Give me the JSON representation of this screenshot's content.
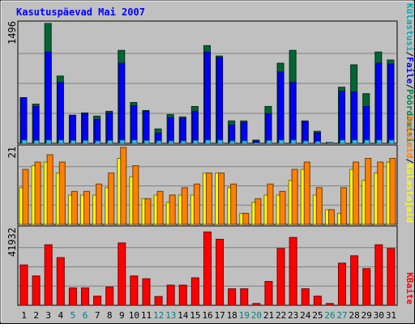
{
  "chart_data": [
    {
      "type": "bar",
      "title": "Kasutuspäevad Mai 2007",
      "categories": [
        "1",
        "2",
        "3",
        "4",
        "5",
        "6",
        "7",
        "8",
        "9",
        "10",
        "11",
        "12",
        "13",
        "14",
        "15",
        "16",
        "17",
        "18",
        "19",
        "20",
        "21",
        "22",
        "23",
        "24",
        "25",
        "26",
        "27",
        "28",
        "29",
        "30",
        "31"
      ],
      "weekend_days": [
        "5",
        "6",
        "12",
        "13",
        "19",
        "20",
        "26",
        "27"
      ],
      "ylabel_max": "1496",
      "ylim": [
        0,
        1496
      ],
      "grid": true,
      "series": [
        {
          "name": "Pöördumisi",
          "color": "#006633",
          "values": [
            570,
            490,
            1496,
            840,
            350,
            380,
            340,
            400,
            1160,
            510,
            410,
            180,
            360,
            330,
            460,
            1220,
            1090,
            280,
            280,
            40,
            460,
            1000,
            1160,
            280,
            150,
            10,
            700,
            980,
            620,
            1140,
            1040
          ]
        },
        {
          "name": "Faile",
          "color": "#0000ff",
          "values": [
            570,
            460,
            1140,
            760,
            350,
            370,
            300,
            380,
            1000,
            470,
            400,
            130,
            320,
            310,
            400,
            1140,
            1070,
            230,
            260,
            30,
            370,
            890,
            760,
            270,
            130,
            5,
            650,
            640,
            460,
            1000,
            990
          ]
        },
        {
          "name": "Külastusi",
          "color": "#33ccff",
          "values": [
            40,
            35,
            40,
            40,
            35,
            35,
            30,
            35,
            40,
            40,
            35,
            30,
            30,
            30,
            35,
            40,
            40,
            30,
            30,
            5,
            35,
            40,
            40,
            30,
            25,
            3,
            40,
            40,
            40,
            40,
            40
          ]
        }
      ]
    },
    {
      "type": "bar",
      "ylabel_max": "21",
      "ylim": [
        0,
        21
      ],
      "grid": true,
      "series": [
        {
          "name": "Külastajaid",
          "color": "#ffff00",
          "values": [
            10,
            16,
            17,
            14,
            8,
            8,
            8,
            10,
            18,
            13,
            7,
            8,
            6,
            8,
            8,
            14,
            14,
            10,
            3,
            6,
            8,
            8,
            12,
            15,
            8,
            4,
            3,
            15,
            12,
            14,
            17
          ]
        },
        {
          "name": "Arvuteid",
          "color": "#ff8000",
          "values": [
            15,
            17,
            19,
            17,
            9,
            9,
            11,
            14,
            21,
            16,
            7,
            9,
            8,
            10,
            11,
            14,
            14,
            11,
            3,
            7,
            11,
            9,
            15,
            17,
            10,
            4,
            10,
            17,
            18,
            17,
            18
          ]
        }
      ]
    },
    {
      "type": "bar",
      "ylabel_max": "41932",
      "ylim": [
        0,
        41932
      ],
      "grid": true,
      "series": [
        {
          "name": "KBaite",
          "color": "#ff0000",
          "values": [
            22000,
            16000,
            33000,
            26000,
            9500,
            9500,
            5000,
            10000,
            34000,
            16000,
            14500,
            4800,
            11000,
            11000,
            15000,
            40000,
            36000,
            9000,
            9000,
            1000,
            13000,
            31000,
            37000,
            9000,
            5000,
            1000,
            23000,
            27000,
            20000,
            33000,
            31000
          ]
        }
      ]
    }
  ],
  "right_legend_upper": [
    {
      "label": "Külastusi",
      "color": "#00aaaa"
    },
    {
      "label": "Faile",
      "color": "#0000ff"
    },
    {
      "label": "Pöördumisi",
      "color": "#008040"
    }
  ],
  "right_legend_middle": [
    {
      "label": "Arvuteid",
      "color": "#ff8000"
    },
    {
      "label": "Külastajaid",
      "color": "#ffff00"
    }
  ],
  "right_legend_lower": [
    {
      "label": "KBaite",
      "color": "#ff0000"
    }
  ],
  "separator": "/"
}
